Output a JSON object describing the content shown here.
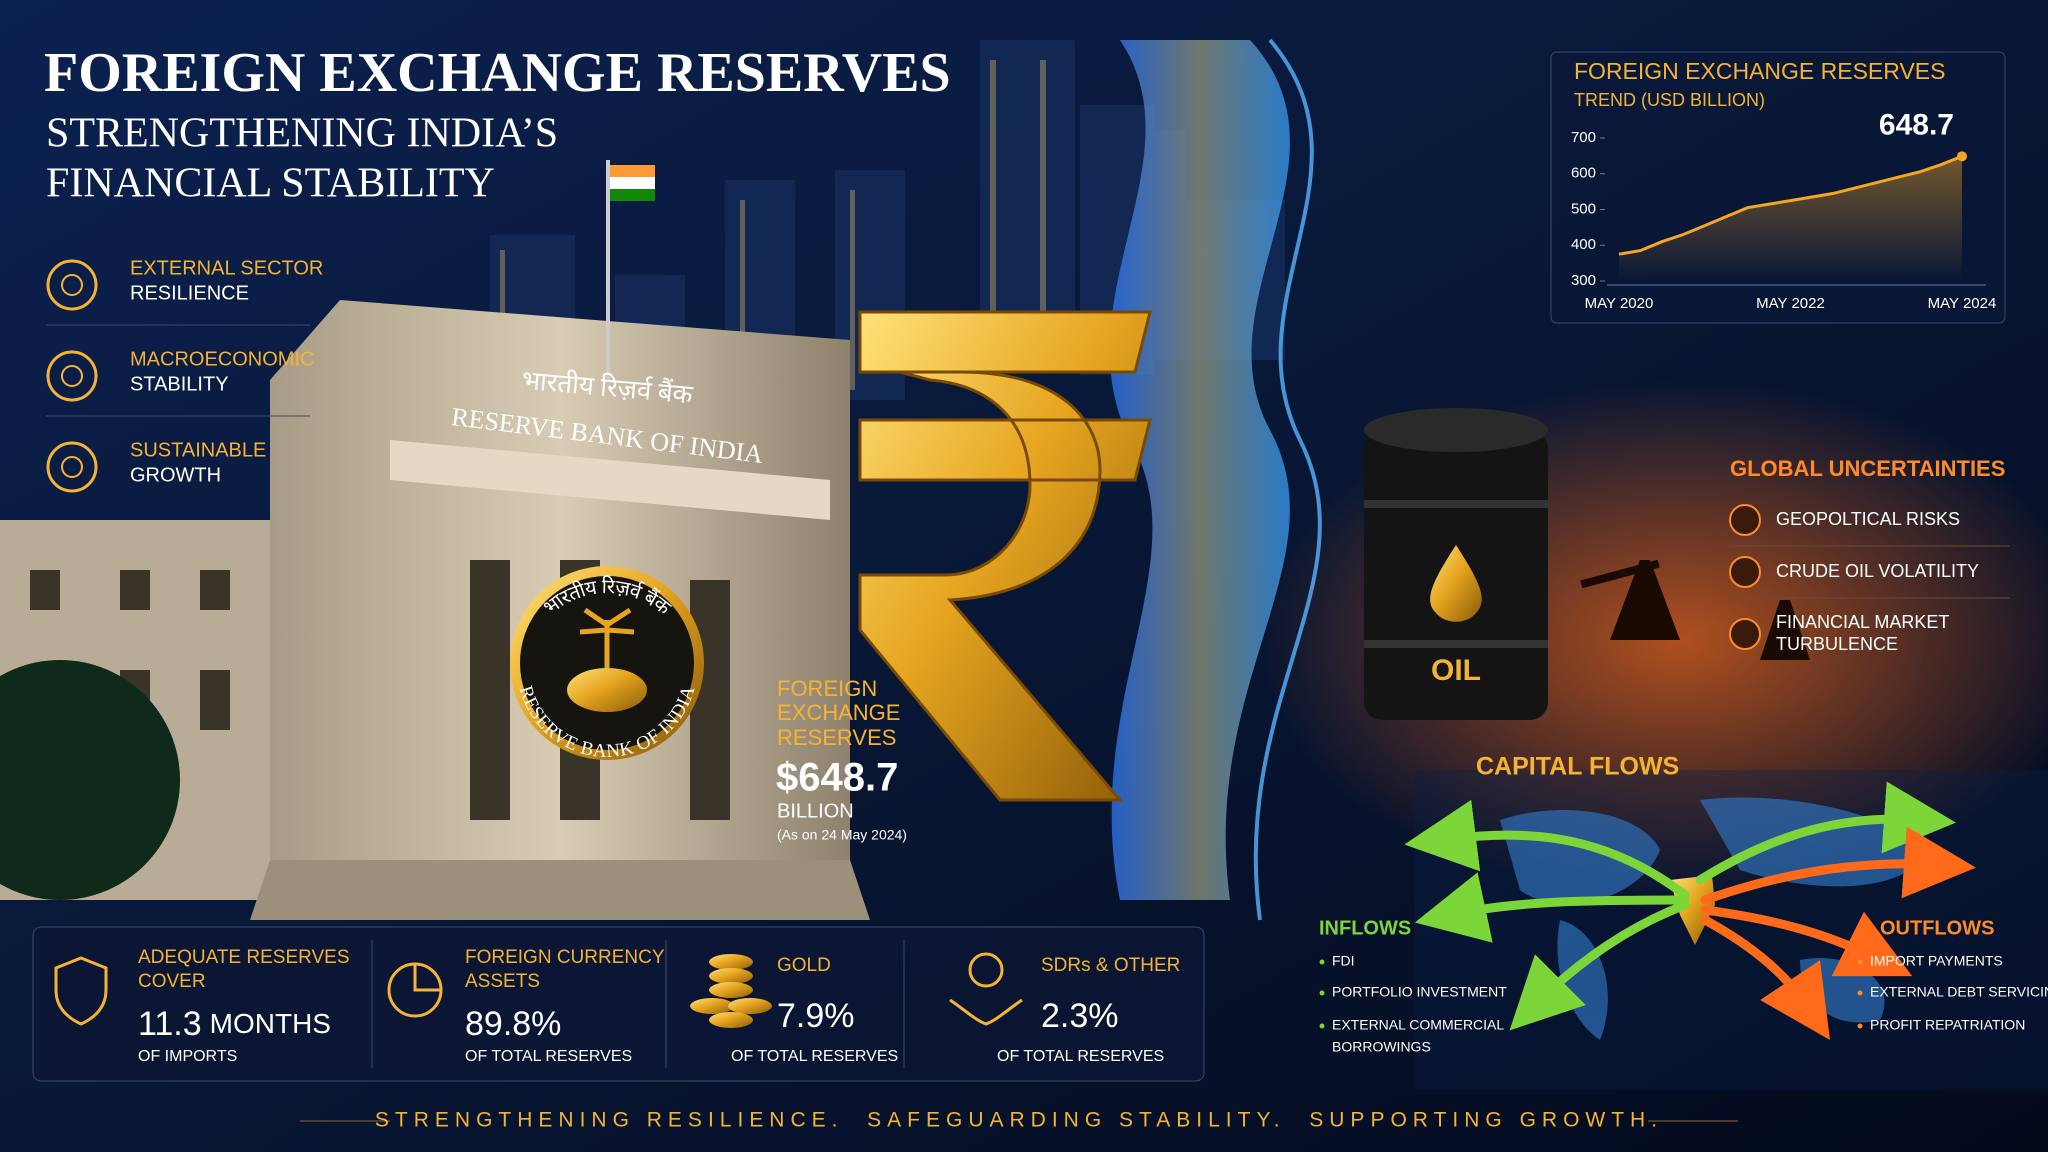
{
  "header": {
    "title": "FOREIGN EXCHANGE RESERVES",
    "subtitle": [
      "STRENGTHENING INDIA’S",
      "FINANCIAL STABILITY"
    ]
  },
  "pillars": [
    {
      "highlight": "EXTERNAL SECTOR",
      "text": "RESILIENCE"
    },
    {
      "highlight": "MACROECONOMIC",
      "text": "STABILITY"
    },
    {
      "highlight": "SUSTAINABLE",
      "text": "GROWTH"
    }
  ],
  "building": {
    "hindi_name": "भारतीय रिज़र्व बैंक",
    "name": "RESERVE BANK OF INDIA",
    "seal_hindi": "भारतीय रिज़र्व बैंक",
    "seal_name": "RESERVE BANK OF INDIA"
  },
  "headline": {
    "label": [
      "FOREIGN",
      "EXCHANGE",
      "RESERVES"
    ],
    "amount": "$648.7",
    "unit": "BILLION",
    "as_of": "(As on 24 May 2024)"
  },
  "oil": "OIL",
  "chart_data": {
    "type": "line",
    "title": "FOREIGN EXCHANGE RESERVES",
    "subtitle": "TREND (USD BILLION)",
    "categories": [
      "MAY 2020",
      null,
      null,
      null,
      null,
      null,
      null,
      null,
      "MAY 2022",
      null,
      null,
      null,
      null,
      null,
      null,
      null,
      "MAY 2024"
    ],
    "values": [
      375,
      385,
      410,
      430,
      455,
      480,
      505,
      515,
      525,
      535,
      545,
      560,
      575,
      590,
      605,
      625,
      648.7
    ],
    "color": "#f5a623",
    "ylim": [
      300,
      700
    ],
    "yticks": [
      300,
      400,
      500,
      600,
      700
    ],
    "grid": false
  },
  "global_uncertainties": {
    "title": "GLOBAL UNCERTAINTIES",
    "items": [
      [
        "GEOPOLTICAL RISKS"
      ],
      [
        "CRUDE OIL VOLATILITY"
      ],
      [
        "FINANCIAL MARKET",
        "TURBULENCE"
      ]
    ]
  },
  "capital_flows": {
    "title": "CAPITAL FLOWS",
    "inflows": {
      "title": "INFLOWS",
      "items": [
        [
          "FDI"
        ],
        [
          "PORTFOLIO INVESTMENT"
        ],
        [
          "EXTERNAL COMMERCIAL",
          "BORROWINGS"
        ]
      ]
    },
    "outflows": {
      "title": "OUTFLOWS",
      "items": [
        [
          "IMPORT PAYMENTS"
        ],
        [
          "EXTERNAL DEBT SERVICING"
        ],
        [
          "PROFIT REPATRIATION"
        ]
      ]
    }
  },
  "stats": [
    {
      "title": [
        "ADEQUATE RESERVES",
        "COVER"
      ],
      "value": "11.3",
      "unit": "MONTHS",
      "caption": "OF IMPORTS"
    },
    {
      "title": [
        "FOREIGN CURRENCY",
        "ASSETS"
      ],
      "value": "89.8%",
      "caption": "OF TOTAL RESERVES"
    },
    {
      "title": [
        "GOLD"
      ],
      "value": "7.9%",
      "caption": "OF TOTAL RESERVES"
    },
    {
      "title": [
        "SDRs & OTHER"
      ],
      "value": "2.3%",
      "caption": "OF TOTAL RESERVES"
    }
  ],
  "tagline": "STRENGTHENING RESILIENCE.  SAFEGUARDING STABILITY.  SUPPORTING GROWTH."
}
